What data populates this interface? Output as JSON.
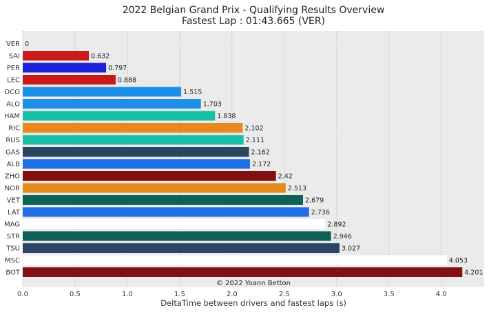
{
  "chart_data": {
    "type": "bar",
    "orientation": "horizontal",
    "title": "2022 Belgian Grand Prix - Qualifying Results Overview",
    "subtitle": "Fastest Lap : 01:43.665 (VER)",
    "xlabel": "DeltaTime between drivers and fastest laps (s)",
    "ylabel": "",
    "xlim": [
      0,
      4.41
    ],
    "xticks": [
      "0.0",
      "0.5",
      "1.0",
      "1.5",
      "2.0",
      "2.5",
      "3.0",
      "3.5",
      "4.0"
    ],
    "grid": true,
    "credit": "© 2022 Yoann Betton",
    "categories": [
      "VER",
      "SAI",
      "PER",
      "LEC",
      "OCO",
      "ALO",
      "HAM",
      "RIC",
      "RUS",
      "GAS",
      "ALB",
      "ZHO",
      "NOR",
      "VET",
      "LAT",
      "MAG",
      "STR",
      "TSU",
      "MSC",
      "BOT"
    ],
    "values": [
      0,
      0.632,
      0.797,
      0.888,
      1.515,
      1.703,
      1.838,
      2.102,
      2.111,
      2.162,
      2.172,
      2.42,
      2.513,
      2.679,
      2.736,
      2.892,
      2.946,
      3.027,
      4.053,
      4.201
    ],
    "value_labels": [
      "0",
      "0.632",
      "0.797",
      "0.888",
      "1.515",
      "1.703",
      "1.838",
      "2.102",
      "2.111",
      "2.162",
      "2.172",
      "2.42",
      "2.513",
      "2.679",
      "2.736",
      "2.892",
      "2.946",
      "3.027",
      "4.053",
      "4.201"
    ],
    "colors": [
      "#1e41ff",
      "#c91a1a",
      "#2020d8",
      "#c91a1a",
      "#1e8fe6",
      "#1e8fe6",
      "#1abfa8",
      "#e68a1e",
      "#1abfa8",
      "#2b4562",
      "#1e6fe6",
      "#821010",
      "#e68a1e",
      "#0e6157",
      "#1e6fe6",
      "#ffffff",
      "#0e6157",
      "#2b4562",
      "#ffffff",
      "#821010"
    ]
  }
}
